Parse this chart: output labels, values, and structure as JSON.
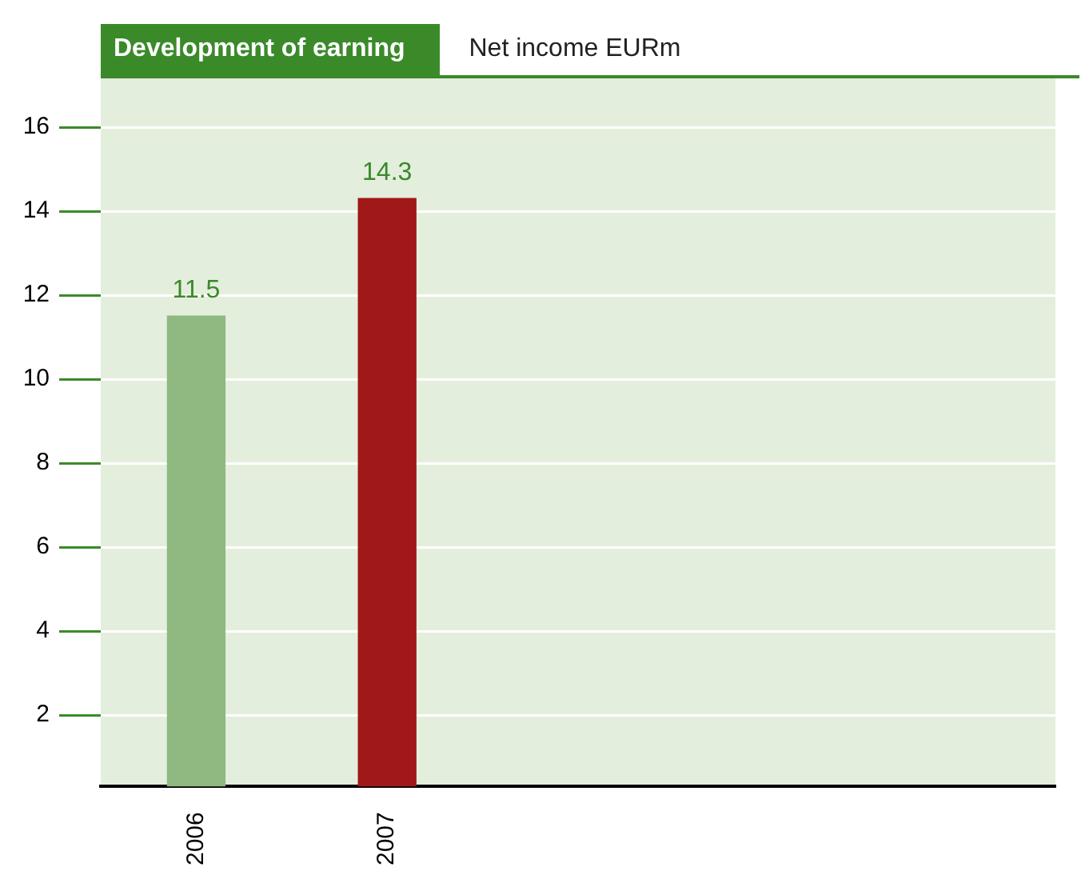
{
  "chart_data": {
    "type": "bar",
    "title": "Development of earning",
    "subtitle": "Net income EURm",
    "categories": [
      "2006",
      "2007",
      null,
      null,
      null
    ],
    "values": [
      11.5,
      14.3,
      null,
      null,
      null
    ],
    "colors": [
      "#8fb981",
      "#a01818",
      null,
      null,
      null
    ],
    "ylim": [
      0.3,
      17.2
    ],
    "yticks": [
      2,
      4,
      6,
      8,
      10,
      12,
      14,
      16
    ],
    "grid": "y",
    "data_labels": true
  }
}
